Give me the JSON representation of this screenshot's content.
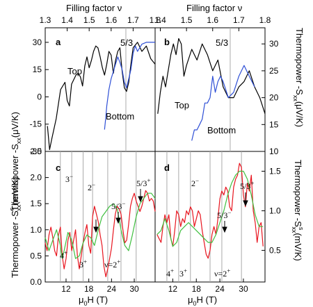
{
  "top_axis": {
    "label": "Filling factor ν",
    "ticks_left": [
      "1.3",
      "1.4",
      "1.5",
      "1.6",
      "1.7",
      "1.8"
    ],
    "ticks_right": [
      "1.4",
      "1.5",
      "1.6",
      "1.7",
      "1.8"
    ]
  },
  "bottom_axis": {
    "label_main": "μ",
    "label_sub": "0",
    "label_rest": "H (T)",
    "ticks_left": [
      "12",
      "18",
      "24",
      "30"
    ],
    "ticks_right": [
      "12",
      "18",
      "24",
      "30"
    ]
  },
  "left_axis_top": {
    "label_main": "Thermopower -S",
    "label_sub": "xx",
    "label_unit": "(μV/K)",
    "ticks": [
      "30",
      "15",
      "0",
      "-15",
      "-30"
    ]
  },
  "right_axis_top": {
    "label_main": "Thermopower -S",
    "label_sub": "xx",
    "label_unit": "(μV/K)",
    "ticks": [
      "30",
      "25",
      "20",
      "15",
      "10"
    ]
  },
  "left_axis_bottom": {
    "label_main": "Thermopower -S",
    "label_sup": "s",
    "label_sub": "xx",
    "label_unit": "(mV/K)",
    "ticks": [
      "2.5",
      "2.0",
      "1.5",
      "1.0",
      "0.5",
      "0.0"
    ]
  },
  "right_axis_bottom": {
    "label_main": "Thermopower -S",
    "label_sup": "s",
    "label_sub": "xx",
    "label_unit": "(mV/K)",
    "ticks": [
      "1.5",
      "1.0",
      "0.5"
    ]
  },
  "panels": {
    "a": {
      "letter": "a",
      "anno_53": "5/3",
      "top_label": "Top",
      "bottom_label": "Bottom"
    },
    "b": {
      "letter": "b",
      "anno_53": "5/3",
      "top_label": "Top",
      "bottom_label": "Bottom"
    },
    "c": {
      "letter": "c",
      "labels": {
        "m3": "3",
        "m3s": "−",
        "m2": "2",
        "m2s": "−",
        "f53": "5/3",
        "f53s": "−",
        "f53p": "5/3",
        "f53ps": "+",
        "p4": "4",
        "p4s": "+",
        "p3": "3",
        "p3s": "+",
        "nu2": "ν=2",
        "nu2s": "+"
      }
    },
    "d": {
      "letter": "d",
      "labels": {
        "m2": "2",
        "m2s": "−",
        "f53": "5/3",
        "f53s": "−",
        "f53p": "5/3",
        "f53ps": "+",
        "p4": "4",
        "p4s": "+",
        "p3": "3",
        "p3s": "+",
        "nu2": "ν=2",
        "nu2s": "+"
      }
    }
  },
  "colors": {
    "top": "#000000",
    "bottom": "#2e4fd6",
    "red": "#e8141e",
    "green": "#3fbf3f"
  },
  "chart_data": [
    {
      "panel": "a",
      "type": "line",
      "xlabel": "Filling factor ν",
      "ylabel": "Thermopower -Sxx (μV/K)",
      "xlim": [
        1.3,
        1.8
      ],
      "ylim": [
        -30,
        38
      ],
      "series": [
        {
          "name": "Top",
          "color": "#000000",
          "x": [
            1.31,
            1.32,
            1.33,
            1.35,
            1.37,
            1.39,
            1.4,
            1.41,
            1.42,
            1.44,
            1.45,
            1.46,
            1.47,
            1.48,
            1.49,
            1.5,
            1.51,
            1.52,
            1.53,
            1.54,
            1.55,
            1.56,
            1.57,
            1.58,
            1.59,
            1.6,
            1.61,
            1.62,
            1.63,
            1.64,
            1.65,
            1.66,
            1.67,
            1.68,
            1.69,
            1.7,
            1.72,
            1.74,
            1.76,
            1.78,
            1.8
          ],
          "y": [
            -16,
            -29,
            -23,
            -12,
            4,
            8,
            -2,
            -5,
            7,
            12,
            13,
            11,
            6,
            17,
            22,
            16,
            20,
            25,
            28,
            27,
            22,
            16,
            12,
            18,
            25,
            23,
            13,
            20,
            25,
            27,
            14,
            5,
            3,
            8,
            18,
            27,
            30,
            25,
            28,
            21,
            18
          ]
        },
        {
          "name": "Bottom",
          "color": "#2e4fd6",
          "x": [
            1.57,
            1.575,
            1.58,
            1.59,
            1.6,
            1.61,
            1.62,
            1.63,
            1.64,
            1.65,
            1.66,
            1.67,
            1.68,
            1.69,
            1.7,
            1.71,
            1.72,
            1.74,
            1.76,
            1.78,
            1.8
          ],
          "y": [
            -18,
            -12,
            -5,
            4,
            10,
            14,
            18,
            22,
            19,
            15,
            8,
            5,
            10,
            15,
            24,
            28,
            25,
            29,
            30,
            30,
            30
          ]
        }
      ]
    },
    {
      "panel": "b",
      "type": "line",
      "xlabel": "Filling factor ν",
      "ylabel": "Thermopower -Sxx (μV/K)",
      "xlim": [
        1.38,
        1.8
      ],
      "ylim": [
        10,
        33
      ],
      "series": [
        {
          "name": "Top",
          "color": "#000000",
          "x": [
            1.39,
            1.4,
            1.41,
            1.42,
            1.43,
            1.44,
            1.45,
            1.46,
            1.47,
            1.48,
            1.49,
            1.5,
            1.52,
            1.54,
            1.56,
            1.58,
            1.6,
            1.62,
            1.64,
            1.66,
            1.68,
            1.7,
            1.72,
            1.74,
            1.76,
            1.78,
            1.8
          ],
          "y": [
            17,
            21,
            24,
            22,
            25,
            28,
            30,
            28,
            31,
            30,
            24,
            26,
            29,
            27,
            30,
            28,
            25,
            27,
            22,
            20,
            20,
            22,
            23,
            25,
            22,
            20,
            17
          ]
        },
        {
          "name": "Bottom",
          "color": "#2e4fd6",
          "x": [
            1.52,
            1.53,
            1.54,
            1.55,
            1.56,
            1.57,
            1.58,
            1.59,
            1.6,
            1.61,
            1.62,
            1.63,
            1.64,
            1.66,
            1.68,
            1.7,
            1.72,
            1.74,
            1.76
          ],
          "y": [
            12,
            14,
            14,
            15,
            16,
            19,
            19,
            20,
            24,
            21,
            23,
            24,
            23,
            20,
            21,
            24,
            26,
            24,
            22
          ]
        }
      ]
    },
    {
      "panel": "c",
      "type": "line",
      "xlabel": "μ0H (T)",
      "ylabel": "Thermopower -Sxx^s (mV/K)",
      "xlim": [
        6.5,
        35.5
      ],
      "ylim": [
        0,
        2.5
      ],
      "series": [
        {
          "name": "",
          "color": "#e8141e",
          "x": [
            6.5,
            7.0,
            7.5,
            8.0,
            8.5,
            9.0,
            9.5,
            10.0,
            10.5,
            11.0,
            11.5,
            12.0,
            12.5,
            13.0,
            13.5,
            14.0,
            14.5,
            15.0,
            15.5,
            16.0,
            16.5,
            17.0,
            17.5,
            18.0,
            18.5,
            19.0,
            19.5,
            20.0,
            20.5,
            21.0,
            21.5,
            22.0,
            22.5,
            23.0,
            23.5,
            24.0,
            24.5,
            25.0,
            25.5,
            26.0,
            26.5,
            27.0,
            27.5,
            28.0,
            28.5,
            29.0,
            29.5,
            30.0,
            30.5,
            31.0,
            31.5,
            32.0,
            32.5,
            33.0,
            33.5,
            34.0,
            34.5,
            35.0,
            35.5
          ],
          "y": [
            0.75,
            0.6,
            0.9,
            1.05,
            0.85,
            0.6,
            0.5,
            0.9,
            1.05,
            0.5,
            0.25,
            0.45,
            0.8,
            0.95,
            0.6,
            0.8,
            1.0,
            0.5,
            0.25,
            0.5,
            0.75,
            0.95,
            1.1,
            0.7,
            0.55,
            1.25,
            1.45,
            1.3,
            1.15,
            0.9,
            0.7,
            0.3,
            0.1,
            0.25,
            0.45,
            0.65,
            1.0,
            1.3,
            1.45,
            1.4,
            1.3,
            1.0,
            0.75,
            0.8,
            1.1,
            1.45,
            1.6,
            1.7,
            1.55,
            1.45,
            1.35,
            1.45,
            1.6,
            1.75,
            1.7,
            1.55,
            1.6,
            1.55,
            1.35
          ]
        },
        {
          "name": "",
          "color": "#3fbf3f",
          "x": [
            6.5,
            7.5,
            8.5,
            9.5,
            10.5,
            11.0,
            11.5,
            12.5,
            13.5,
            14.5,
            15.5,
            16.5,
            17.5,
            18.5,
            19.5,
            20.5,
            21.5,
            22.5,
            23.5,
            24.5,
            25.5,
            26.5,
            27.5,
            28.5,
            29.5,
            30.5,
            31.5,
            32.5,
            33.5,
            34.5,
            35.5
          ],
          "y": [
            0.85,
            0.6,
            0.8,
            1.0,
            0.7,
            0.45,
            0.6,
            0.95,
            0.8,
            0.45,
            0.5,
            0.75,
            0.9,
            0.85,
            0.7,
            1.0,
            1.25,
            1.35,
            1.45,
            1.5,
            1.4,
            1.0,
            0.7,
            0.6,
            0.9,
            1.25,
            1.5,
            1.6,
            1.7,
            1.7,
            1.6
          ]
        }
      ]
    },
    {
      "panel": "d",
      "type": "line",
      "xlabel": "μ0H (T)",
      "ylabel": "Thermopower -Sxx^s (mV/K)",
      "xlim": [
        7.5,
        35.5
      ],
      "ylim": [
        0.1,
        1.75
      ],
      "series": [
        {
          "name": "",
          "color": "#e8141e",
          "x": [
            8.0,
            8.5,
            9.0,
            9.5,
            10.0,
            10.5,
            11.0,
            11.5,
            12.0,
            12.5,
            13.0,
            13.5,
            14.0,
            14.5,
            15.0,
            15.5,
            16.0,
            16.5,
            17.0,
            17.5,
            18.0,
            18.5,
            19.0,
            19.5,
            20.0,
            20.5,
            21.0,
            21.5,
            22.0,
            22.5,
            23.0,
            23.5,
            24.0,
            24.5,
            25.0,
            25.5,
            26.0,
            26.5,
            27.0,
            27.5,
            28.0,
            28.5,
            29.0,
            29.5,
            30.0,
            30.5,
            31.0,
            31.5,
            32.0,
            32.5,
            33.0,
            33.5,
            34.0,
            34.5,
            35.0
          ],
          "y": [
            0.7,
            0.65,
            0.6,
            0.8,
            0.95,
            0.85,
            0.95,
            0.65,
            0.55,
            0.75,
            1.0,
            0.95,
            0.8,
            0.9,
            0.85,
            1.0,
            0.95,
            1.05,
            1.0,
            0.8,
            0.9,
            1.0,
            0.95,
            0.75,
            0.6,
            0.45,
            0.4,
            0.5,
            0.7,
            0.8,
            0.7,
            0.9,
            1.15,
            1.25,
            1.2,
            1.3,
            1.25,
            1.05,
            1.0,
            1.3,
            1.4,
            1.45,
            1.6,
            1.55,
            1.2,
            1.05,
            1.35,
            1.25,
            1.45,
            1.0,
            0.85,
            0.6,
            0.8,
            0.85,
            0.55
          ]
        },
        {
          "name": "",
          "color": "#3fbf3f",
          "x": [
            8.0,
            9.0,
            10.0,
            11.0,
            12.0,
            13.0,
            14.0,
            15.0,
            16.0,
            17.0,
            18.0,
            19.0,
            20.0,
            21.0,
            22.0,
            23.0,
            24.0,
            25.0,
            26.0,
            27.0,
            28.0,
            29.0,
            30.0,
            31.0,
            32.0,
            33.0,
            34.0,
            35.0
          ],
          "y": [
            0.7,
            0.75,
            0.9,
            0.75,
            0.55,
            0.6,
            0.75,
            0.8,
            0.85,
            0.8,
            0.75,
            0.7,
            0.65,
            0.6,
            0.6,
            0.7,
            0.85,
            1.0,
            1.2,
            1.35,
            1.45,
            1.5,
            1.5,
            1.4,
            1.2,
            0.95,
            0.8,
            0.8
          ]
        }
      ]
    }
  ]
}
